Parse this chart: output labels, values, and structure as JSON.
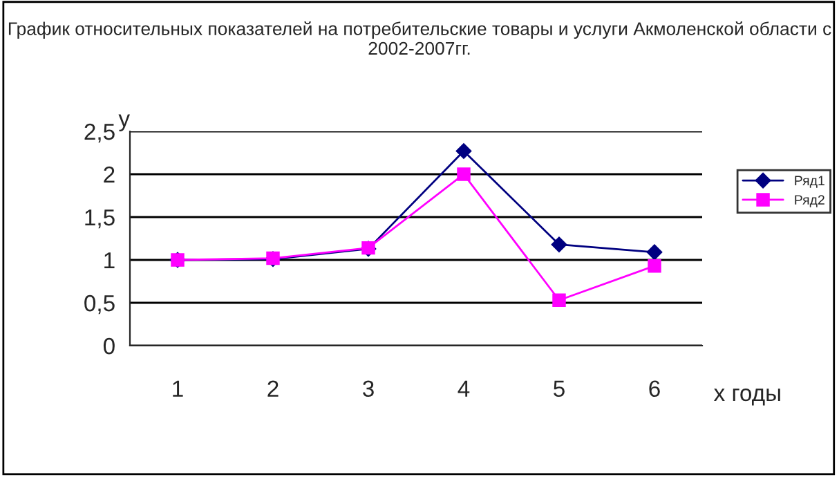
{
  "chart_data": {
    "type": "line",
    "title": "График относительных показателей на потребительские товары и услуги Акмоленской области с 2002-2007гг.",
    "categories": [
      "1",
      "2",
      "3",
      "4",
      "5",
      "6"
    ],
    "series": [
      {
        "name": "Ряд1",
        "color": "#000080",
        "marker": "diamond",
        "values": [
          1.0,
          1.01,
          1.13,
          2.27,
          1.18,
          1.09
        ]
      },
      {
        "name": "Ряд2",
        "color": "#ff00ff",
        "marker": "square",
        "values": [
          1.0,
          1.02,
          1.14,
          2.0,
          0.53,
          0.93
        ]
      }
    ],
    "xlabel": "x годы",
    "ylabel": "y",
    "ylim": [
      0,
      2.5
    ],
    "yticks": [
      0,
      {
        "value": 0.5,
        "label": "0,5"
      },
      1,
      {
        "value": 1.5,
        "label": "1,5"
      },
      2,
      {
        "value": 2.5,
        "label": "2,5"
      }
    ],
    "grid": "y",
    "legend": "right",
    "line_style": "solid"
  }
}
